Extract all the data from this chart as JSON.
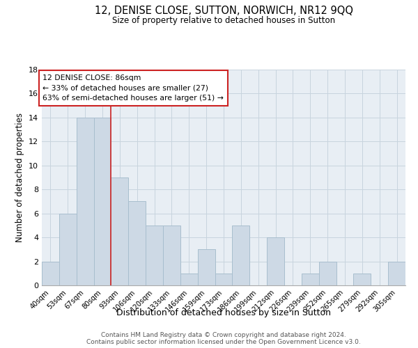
{
  "title": "12, DENISE CLOSE, SUTTON, NORWICH, NR12 9QQ",
  "subtitle": "Size of property relative to detached houses in Sutton",
  "xlabel": "Distribution of detached houses by size in Sutton",
  "ylabel": "Number of detached properties",
  "bin_labels": [
    "40sqm",
    "53sqm",
    "67sqm",
    "80sqm",
    "93sqm",
    "106sqm",
    "120sqm",
    "133sqm",
    "146sqm",
    "159sqm",
    "173sqm",
    "186sqm",
    "199sqm",
    "212sqm",
    "226sqm",
    "239sqm",
    "252sqm",
    "265sqm",
    "279sqm",
    "292sqm",
    "305sqm"
  ],
  "bar_heights": [
    2,
    6,
    14,
    14,
    9,
    7,
    5,
    5,
    1,
    3,
    1,
    5,
    0,
    4,
    0,
    1,
    2,
    0,
    1,
    0,
    2
  ],
  "bar_color": "#cdd9e5",
  "bar_edge_color": "#a8bece",
  "vline_x_index": 3.5,
  "annotation_text_line1": "12 DENISE CLOSE: 86sqm",
  "annotation_text_line2": "← 33% of detached houses are smaller (27)",
  "annotation_text_line3": "63% of semi-detached houses are larger (51) →",
  "annotation_box_color": "#ffffff",
  "annotation_box_edge": "#cc2222",
  "vline_color": "#cc2222",
  "ylim": [
    0,
    18
  ],
  "yticks": [
    0,
    2,
    4,
    6,
    8,
    10,
    12,
    14,
    16,
    18
  ],
  "footer_line1": "Contains HM Land Registry data © Crown copyright and database right 2024.",
  "footer_line2": "Contains public sector information licensed under the Open Government Licence v3.0.",
  "grid_color": "#c8d4de",
  "background_color": "#e8eef4"
}
